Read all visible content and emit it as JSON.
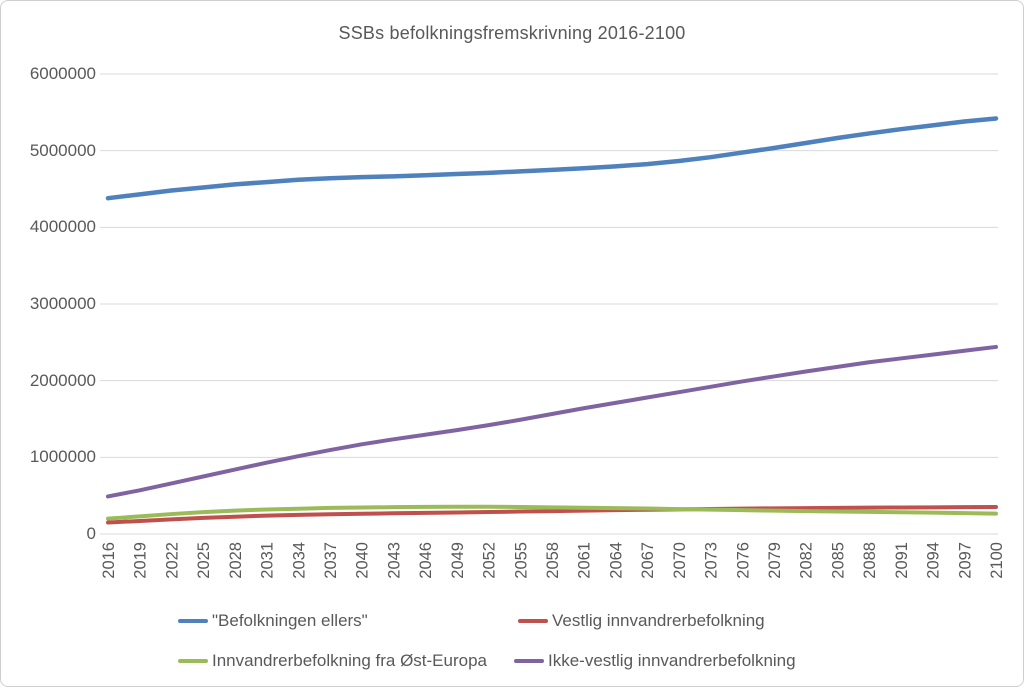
{
  "chart": {
    "title": "SSBs befolkningsfremskrivning 2016-2100"
  },
  "chart_data": {
    "type": "line",
    "title": "SSBs befolkningsfremskrivning 2016-2100",
    "xlabel": "",
    "ylabel": "",
    "grid": true,
    "legend_position": "bottom",
    "ylim": [
      0,
      6000000
    ],
    "yticks": [
      0,
      1000000,
      2000000,
      3000000,
      4000000,
      5000000,
      6000000
    ],
    "categories": [
      2016,
      2019,
      2022,
      2025,
      2028,
      2031,
      2034,
      2037,
      2040,
      2043,
      2046,
      2049,
      2052,
      2055,
      2058,
      2061,
      2064,
      2067,
      2070,
      2073,
      2076,
      2079,
      2082,
      2085,
      2088,
      2091,
      2094,
      2097,
      2100
    ],
    "series": [
      {
        "name": "\"Befolkningen ellers\"",
        "color": "#4F81BD",
        "values": [
          4380000,
          4430000,
          4480000,
          4520000,
          4560000,
          4590000,
          4620000,
          4640000,
          4655000,
          4665000,
          4680000,
          4695000,
          4710000,
          4730000,
          4750000,
          4770000,
          4795000,
          4825000,
          4865000,
          4915000,
          4975000,
          5035000,
          5100000,
          5165000,
          5225000,
          5280000,
          5330000,
          5380000,
          5420000
        ]
      },
      {
        "name": "Vestlig innvandrerbefolkning",
        "color": "#C0504D",
        "values": [
          150000,
          170000,
          190000,
          210000,
          225000,
          240000,
          250000,
          258000,
          264000,
          270000,
          275000,
          280000,
          287000,
          293000,
          299000,
          305000,
          311000,
          316000,
          321000,
          326000,
          331000,
          335000,
          338000,
          341000,
          344000,
          346000,
          348000,
          350000,
          352000
        ]
      },
      {
        "name": "Innvandrerbefolkning fra Øst-Europa",
        "color": "#9BBB59",
        "values": [
          200000,
          230000,
          260000,
          285000,
          305000,
          320000,
          330000,
          340000,
          345000,
          350000,
          353000,
          355000,
          355000,
          352000,
          348000,
          343000,
          338000,
          332000,
          325000,
          318000,
          311000,
          305000,
          299000,
          293000,
          288000,
          283000,
          278000,
          272000,
          266000
        ]
      },
      {
        "name": "Ikke-vestlig innvandrerbefolkning",
        "color": "#8064A2",
        "values": [
          490000,
          570000,
          660000,
          750000,
          840000,
          930000,
          1015000,
          1095000,
          1170000,
          1235000,
          1295000,
          1355000,
          1420000,
          1490000,
          1565000,
          1640000,
          1710000,
          1780000,
          1850000,
          1920000,
          1990000,
          2055000,
          2120000,
          2180000,
          2240000,
          2290000,
          2340000,
          2390000,
          2440000
        ]
      }
    ],
    "colors": {
      "gridline": "#D9D9D9",
      "axis_text": "#595959",
      "title_text": "#595959",
      "background": "#FFFFFF"
    }
  }
}
